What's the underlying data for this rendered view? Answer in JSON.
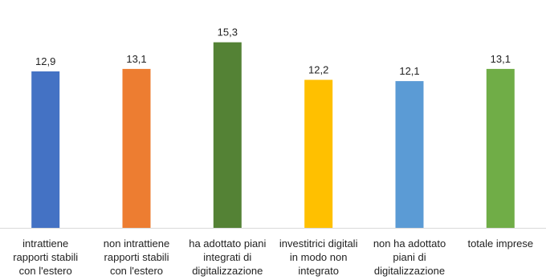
{
  "chart_data": {
    "type": "bar",
    "categories": [
      [
        "intrattiene",
        "rapporti stabili",
        "con l'estero"
      ],
      [
        "non intrattiene",
        "rapporti stabili",
        "con l'estero"
      ],
      [
        "ha adottato piani",
        "integrati di",
        "digitalizzazione"
      ],
      [
        "investitrici digitali",
        "in modo non",
        "integrato"
      ],
      [
        "non ha adottato",
        "piani di",
        "digitalizzazione"
      ],
      [
        "totale imprese"
      ]
    ],
    "values": [
      12.9,
      13.1,
      15.3,
      12.2,
      12.1,
      13.1
    ],
    "value_labels": [
      "12,9",
      "13,1",
      "15,3",
      "12,2",
      "12,1",
      "13,1"
    ],
    "colors": [
      "#4472C4",
      "#ED7D31",
      "#548235",
      "#FFC000",
      "#5B9BD5",
      "#70AD47"
    ],
    "ylim": [
      0,
      16.8
    ],
    "grid": false,
    "legend": "none",
    "title": "",
    "xlabel": "",
    "ylabel": ""
  }
}
